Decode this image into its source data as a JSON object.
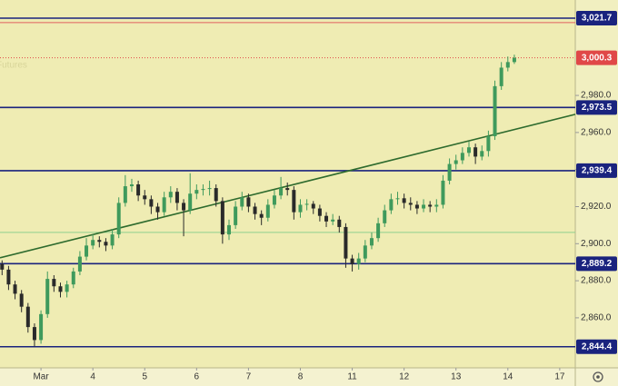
{
  "chart_data": {
    "type": "candlestick",
    "watermark": "Futures",
    "x": [
      -0.75,
      -0.625,
      -0.5,
      -0.375,
      -0.25,
      -0.125,
      0,
      0.125,
      0.25,
      0.375,
      0.5,
      0.625,
      0.75,
      0.875,
      1,
      1.125,
      1.25,
      1.375,
      1.5,
      1.625,
      1.75,
      1.875,
      2,
      2.125,
      2.25,
      2.375,
      2.5,
      2.625,
      2.75,
      2.875,
      3,
      3.125,
      3.25,
      3.375,
      3.5,
      3.625,
      3.75,
      3.875,
      4,
      4.125,
      4.25,
      4.375,
      4.5,
      4.625,
      4.75,
      4.875,
      5,
      5.125,
      5.25,
      5.375,
      5.5,
      5.625,
      5.75,
      5.875,
      6,
      6.125,
      6.25,
      6.375,
      6.5,
      6.625,
      6.75,
      6.875,
      7,
      7.125,
      7.25,
      7.375,
      7.5,
      7.625,
      7.75,
      7.875,
      8,
      8.125,
      8.25,
      8.375,
      8.5,
      8.625,
      8.75,
      8.875,
      9,
      9.125
    ],
    "open": [
      2889,
      2886,
      2878,
      2873,
      2866,
      2855,
      2848,
      2862,
      2881,
      2877,
      2874,
      2878,
      2885,
      2893,
      2899,
      2902,
      2901,
      2899,
      2905,
      2922,
      2931,
      2932,
      2926,
      2924,
      2920,
      2917,
      2925,
      2928,
      2922,
      2918,
      2927,
      2929,
      2929.5,
      2930,
      2923,
      2905,
      2910,
      2920,
      2925,
      2920,
      2916,
      2914,
      2921,
      2926,
      2930,
      2929,
      2917,
      2921,
      2921.5,
      2919,
      2915,
      2912,
      2913,
      2909,
      2892,
      2889,
      2892,
      2899,
      2903,
      2911,
      2918,
      2924,
      2924.5,
      2922,
      2921,
      2919,
      2921,
      2920,
      2921,
      2934,
      2943,
      2945,
      2949,
      2952,
      2947,
      2950,
      2958,
      2985,
      2995,
      2998
    ],
    "high": [
      2891,
      2888,
      2880,
      2875,
      2868,
      2857,
      2864,
      2885,
      2883,
      2879,
      2880,
      2887,
      2896,
      2903,
      2905,
      2904,
      2903,
      2908,
      2925,
      2937,
      2935,
      2934,
      2929,
      2926,
      2922,
      2928,
      2931,
      2930,
      2924,
      2938,
      2932,
      2932,
      2934,
      2932,
      2925,
      2913,
      2923,
      2928,
      2927,
      2922,
      2918,
      2924,
      2929,
      2936,
      2933,
      2931,
      2924,
      2924,
      2923,
      2921,
      2917,
      2916,
      2915,
      2911,
      2894,
      2895,
      2902,
      2906,
      2914,
      2921,
      2927,
      2928,
      2927,
      2925,
      2923,
      2924,
      2923,
      2924,
      2937,
      2946,
      2948,
      2952,
      2955,
      2954,
      2953,
      2961,
      2988,
      2998,
      3001,
      3002
    ],
    "low": [
      2883,
      2875,
      2870,
      2863,
      2852,
      2844.5,
      2846,
      2860,
      2874,
      2871,
      2871,
      2876,
      2883,
      2891,
      2897,
      2898,
      2896,
      2897,
      2903,
      2920,
      2928,
      2923,
      2921,
      2916,
      2913,
      2915,
      2922,
      2918,
      2904,
      2916,
      2924,
      2926,
      2926,
      2920,
      2900,
      2902,
      2908,
      2918,
      2917,
      2913,
      2910,
      2912,
      2919,
      2924,
      2926,
      2913,
      2914,
      2918,
      2916,
      2912,
      2909,
      2910,
      2906,
      2887,
      2885,
      2886,
      2890,
      2897,
      2901,
      2909,
      2916,
      2921,
      2919,
      2918,
      2916,
      2917,
      2917,
      2917,
      2919,
      2932,
      2940,
      2943,
      2947,
      2943,
      2945,
      2947,
      2956,
      2983,
      2993,
      2997
    ],
    "close": [
      2886,
      2878,
      2873,
      2866,
      2855,
      2848,
      2862,
      2881,
      2877,
      2874,
      2878,
      2885,
      2893,
      2899,
      2902,
      2901,
      2899,
      2905,
      2922,
      2931,
      2932,
      2926,
      2924,
      2920,
      2917,
      2925,
      2928,
      2922,
      2918,
      2927,
      2929,
      2929.5,
      2930,
      2923,
      2905,
      2910,
      2920,
      2925,
      2920,
      2916,
      2914,
      2921,
      2926,
      2930,
      2929,
      2917,
      2921,
      2921.5,
      2919,
      2915,
      2912,
      2913,
      2909,
      2892,
      2889,
      2892,
      2899,
      2903,
      2911,
      2918,
      2924,
      2924.5,
      2922,
      2921,
      2919,
      2921,
      2920,
      2921,
      2934,
      2943,
      2945,
      2949,
      2952,
      2947,
      2950,
      2958,
      2985,
      2995,
      2998,
      3000.3
    ],
    "up_color": "#3f9a5c",
    "down_color": "#2a2a2a",
    "xlim": [
      -0.79,
      10.3
    ],
    "xticks": [
      {
        "value": 0,
        "label": "Mar"
      },
      {
        "value": 1,
        "label": "4"
      },
      {
        "value": 2,
        "label": "5"
      },
      {
        "value": 3,
        "label": "6"
      },
      {
        "value": 4,
        "label": "7"
      },
      {
        "value": 5,
        "label": "8"
      },
      {
        "value": 6,
        "label": "11"
      },
      {
        "value": 7,
        "label": "12"
      },
      {
        "value": 8,
        "label": "13"
      },
      {
        "value": 9,
        "label": "14"
      },
      {
        "value": 10,
        "label": "17"
      }
    ],
    "ylim": [
      2833,
      3031.5
    ],
    "yticks": [
      {
        "value": 2860,
        "label": "2,860.0"
      },
      {
        "value": 2880,
        "label": "2,880.0"
      },
      {
        "value": 2900,
        "label": "2,900.0"
      },
      {
        "value": 2920,
        "label": "2,920.0"
      },
      {
        "value": 2940,
        "label": "2,940.0"
      },
      {
        "value": 2960,
        "label": "2,960.0"
      },
      {
        "value": 2980,
        "label": "2,980.0"
      }
    ],
    "levels": [
      {
        "value": 3021.7,
        "label": "3,021.7"
      },
      {
        "value": 2973.5,
        "label": "2,973.5"
      },
      {
        "value": 2939.4,
        "label": "2,939.4"
      },
      {
        "value": 2889.2,
        "label": "2,889.2"
      },
      {
        "value": 2844.4,
        "label": "2,844.4"
      }
    ],
    "level_color": "#1a237e",
    "last_price": {
      "value": 3000.3,
      "label": "3,000.3"
    },
    "last_price_color": "#e04848",
    "reference_lines": [
      {
        "value": 3019.3,
        "color": "#e06060"
      },
      {
        "value": 2906.1,
        "color": "#8fd08f"
      }
    ],
    "trendline": {
      "x": [
        -0.79,
        10.3
      ],
      "values": [
        2892.4,
        2969.8
      ],
      "color": "#2e6b2e"
    }
  }
}
